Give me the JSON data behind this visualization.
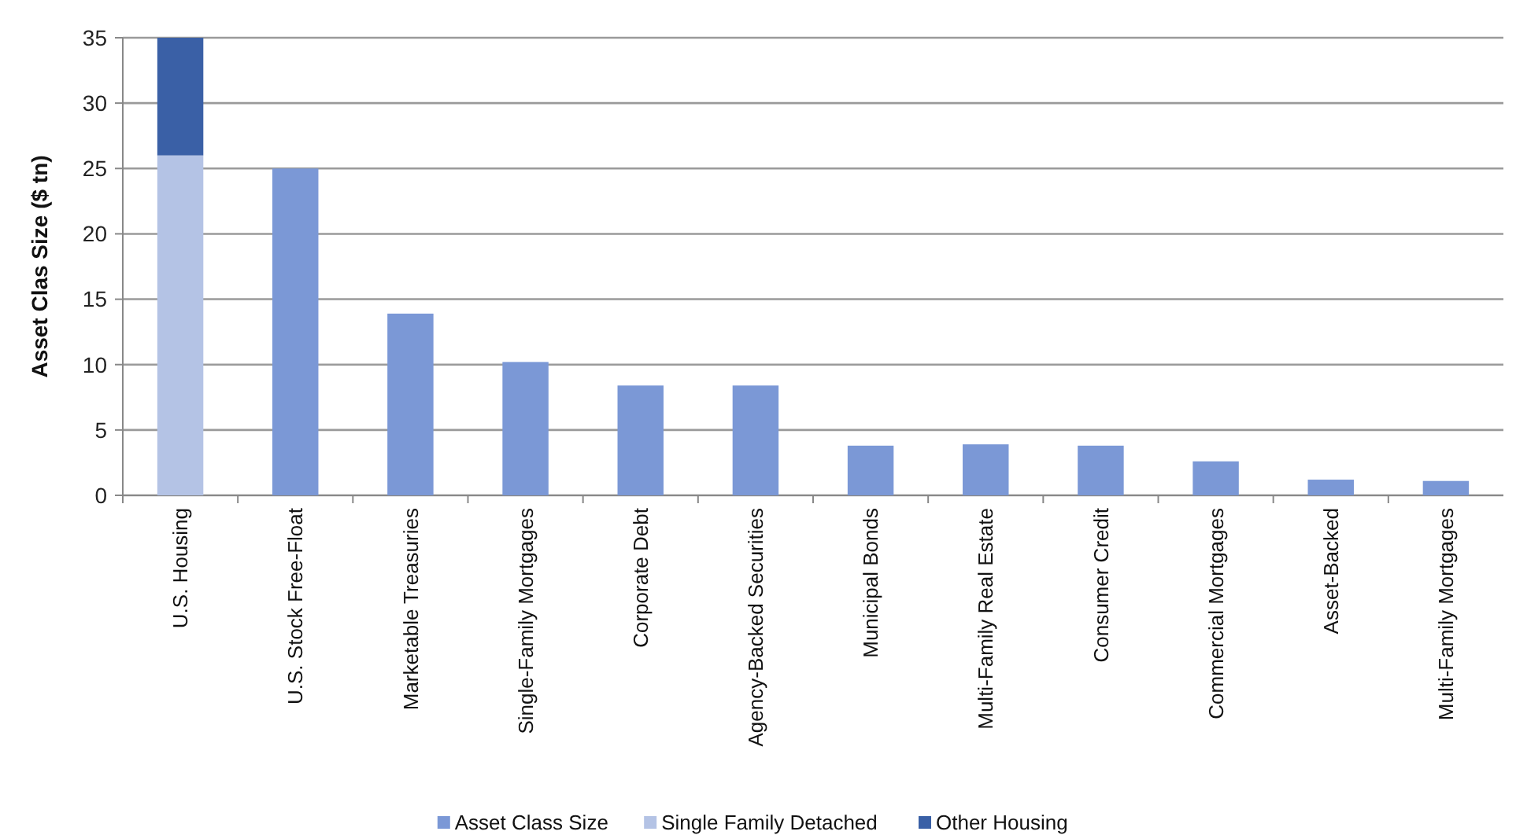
{
  "chart_data": {
    "type": "bar",
    "stacked": true,
    "ylabel": "Asset Clas Size ($ tn)",
    "categories": [
      "U.S. Housing",
      "U.S. Stock Free-Float",
      "Marketable Treasuries",
      "Single-Family Mortgages",
      "Corporate Debt",
      "Agency-Backed Securities",
      "Municipal Bonds",
      "Multi-Family Real Estate",
      "Consumer Credit",
      "Commercial Mortgages",
      "Asset-Backed",
      "Multi-Family Mortgages"
    ],
    "series": [
      {
        "name": "Asset Class Size",
        "color": "#7b98d6",
        "values": [
          null,
          25,
          13.9,
          10.2,
          8.4,
          8.4,
          3.8,
          3.9,
          3.8,
          2.6,
          1.2,
          1.1
        ]
      },
      {
        "name": "Single Family Detached",
        "color": "#b4c3e5",
        "values": [
          26,
          null,
          null,
          null,
          null,
          null,
          null,
          null,
          null,
          null,
          null,
          null
        ]
      },
      {
        "name": "Other Housing",
        "color": "#3a60a6",
        "values": [
          9,
          null,
          null,
          null,
          null,
          null,
          null,
          null,
          null,
          null,
          null,
          null
        ]
      }
    ],
    "ylim": [
      0,
      35
    ],
    "yticks": [
      0,
      5,
      10,
      15,
      20,
      25,
      30,
      35
    ],
    "grid": "y",
    "legend": "bottom"
  }
}
